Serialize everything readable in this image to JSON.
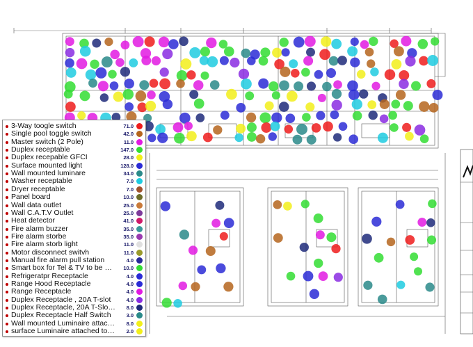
{
  "colors": {
    "red": "#ee1c1c",
    "green": "#33dd33",
    "blue": "#2b2bd6",
    "magenta": "#e21ae2",
    "purple": "#8a2be2",
    "cyan": "#1ecbe1",
    "teal": "#2a8a8a",
    "navy": "#1f2a7a",
    "yellow": "#f2ef1a",
    "brown": "#b5651d",
    "olive": "#7d7a2a",
    "gray": "#8a8a8a"
  },
  "legend": {
    "items": [
      {
        "label": "3-Way toogle switch",
        "count": "71.0",
        "color": "#ee1c1c"
      },
      {
        "label": "Single pool toggle switch",
        "count": "42.0",
        "color": "#b5651d"
      },
      {
        "label": "Master switch (2 Pole)",
        "count": "11.0",
        "color": "#e21ae2"
      },
      {
        "label": "Duplex receptable",
        "count": "147.0",
        "color": "#33dd33"
      },
      {
        "label": "Duplex recepable GFCI",
        "count": "28.0",
        "color": "#f2ef1a"
      },
      {
        "label": "Surface mounted light",
        "count": "128.0",
        "color": "#2b2bd6"
      },
      {
        "label": "Wall mounted luminare",
        "count": "34.0",
        "color": "#2a8a8a"
      },
      {
        "label": "Washer receptable",
        "count": "7.0",
        "color": "#1ecbe1"
      },
      {
        "label": "Dryer receptable",
        "count": "7.0",
        "color": "#a0522d"
      },
      {
        "label": "Panel board",
        "count": "10.0",
        "color": "#6d6d2a"
      },
      {
        "label": "Wall data outlet",
        "count": "25.0",
        "color": "#c97a3a"
      },
      {
        "label": "Wall C.A.T.V Outlet",
        "count": "25.0",
        "color": "#7d3a9a"
      },
      {
        "label": "Heat detector",
        "count": "41.0",
        "color": "#d01a6a"
      },
      {
        "label": "Fire alarm buzzer",
        "count": "35.0",
        "color": "#3a9a9a"
      },
      {
        "label": "Fire alarm storbe",
        "count": "35.0",
        "color": "#9a3ab0"
      },
      {
        "label": "Fire alarm storb light",
        "count": "11.0",
        "color": "#e0e0e0"
      },
      {
        "label": "Motor disconnect switvh",
        "count": "11.0",
        "color": "#9a9a2a"
      },
      {
        "label": "Manual fire alarm pull station",
        "count": "4.0",
        "color": "#2a2a9a"
      },
      {
        "label": "Smart box for Tel & TV to be C/...",
        "count": "10.0",
        "color": "#33dd33"
      },
      {
        "label": "Refrigeratpr Receptacle",
        "count": "4.0",
        "color": "#2b2bd6"
      },
      {
        "label": "Range Hood Receptacle",
        "count": "4.0",
        "color": "#2b2bd6"
      },
      {
        "label": "Range Receptacle",
        "count": "4.0",
        "color": "#e21ae2"
      },
      {
        "label": "Duplex Receptacle , 20A T-slot",
        "count": "4.0",
        "color": "#8a2be2"
      },
      {
        "label": "Duplex Receptacle, 20A T-Slot, G...",
        "count": "8.0",
        "color": "#1f2a7a"
      },
      {
        "label": "Duplex Receptacle Half Switch",
        "count": "3.0",
        "color": "#2a8a8a"
      },
      {
        "label": "Wall mounted Luminaire attached...",
        "count": "8.0",
        "color": "#f2ef1a"
      },
      {
        "label": "surface Luminaire attached to inv...",
        "count": "2.0",
        "color": "#f2ef1a"
      }
    ]
  }
}
